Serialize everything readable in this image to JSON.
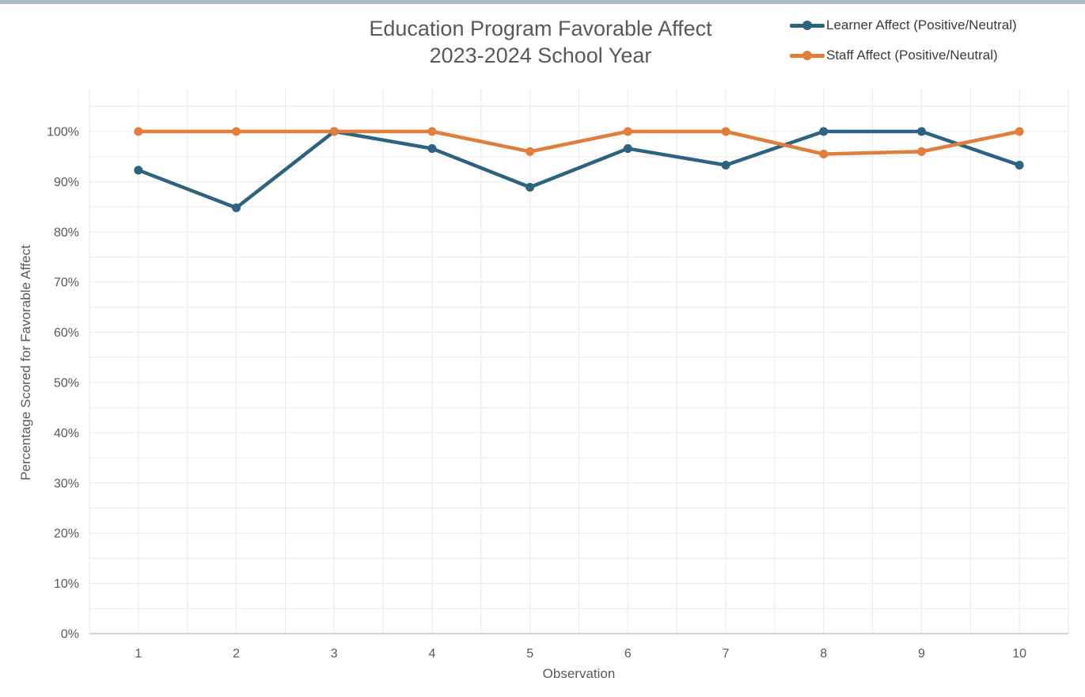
{
  "page": {
    "top_border_color": "#A9BFC5",
    "background_color": "#FFFFFF"
  },
  "chart_data": {
    "type": "line",
    "title": "Education Program Favorable Affect",
    "subtitle": "2023-2024 School Year",
    "xlabel": "Observation",
    "ylabel": "Percentage Scored for Favorable Affect",
    "x": [
      1,
      2,
      3,
      4,
      5,
      6,
      7,
      8,
      9,
      10
    ],
    "series": [
      {
        "name": "Learner Affect (Positive/Neutral)",
        "color": "#2C6380",
        "values": [
          92.3,
          84.8,
          100,
          96.6,
          88.9,
          96.6,
          93.3,
          100,
          100,
          93.3
        ]
      },
      {
        "name": "Staff Affect (Positive/Neutral)",
        "color": "#E07E3C",
        "values": [
          100,
          100,
          100,
          100,
          96,
          100,
          100,
          95.5,
          96,
          100
        ]
      }
    ],
    "y_axis": {
      "min": 0,
      "max": 105,
      "major_step": 10,
      "minor_step": 5,
      "tick_labels": [
        "0%",
        "10%",
        "20%",
        "30%",
        "40%",
        "50%",
        "60%",
        "70%",
        "80%",
        "90%",
        "100%"
      ]
    },
    "x_axis": {
      "tick_labels": [
        "1",
        "2",
        "3",
        "4",
        "5",
        "6",
        "7",
        "8",
        "9",
        "10"
      ]
    },
    "legend_position": "top-right",
    "grid": {
      "horizontal_minor": true,
      "vertical_minor": true,
      "gridline_color": "#E8E8E8",
      "axis_line_color": "#D2D6DA"
    }
  }
}
